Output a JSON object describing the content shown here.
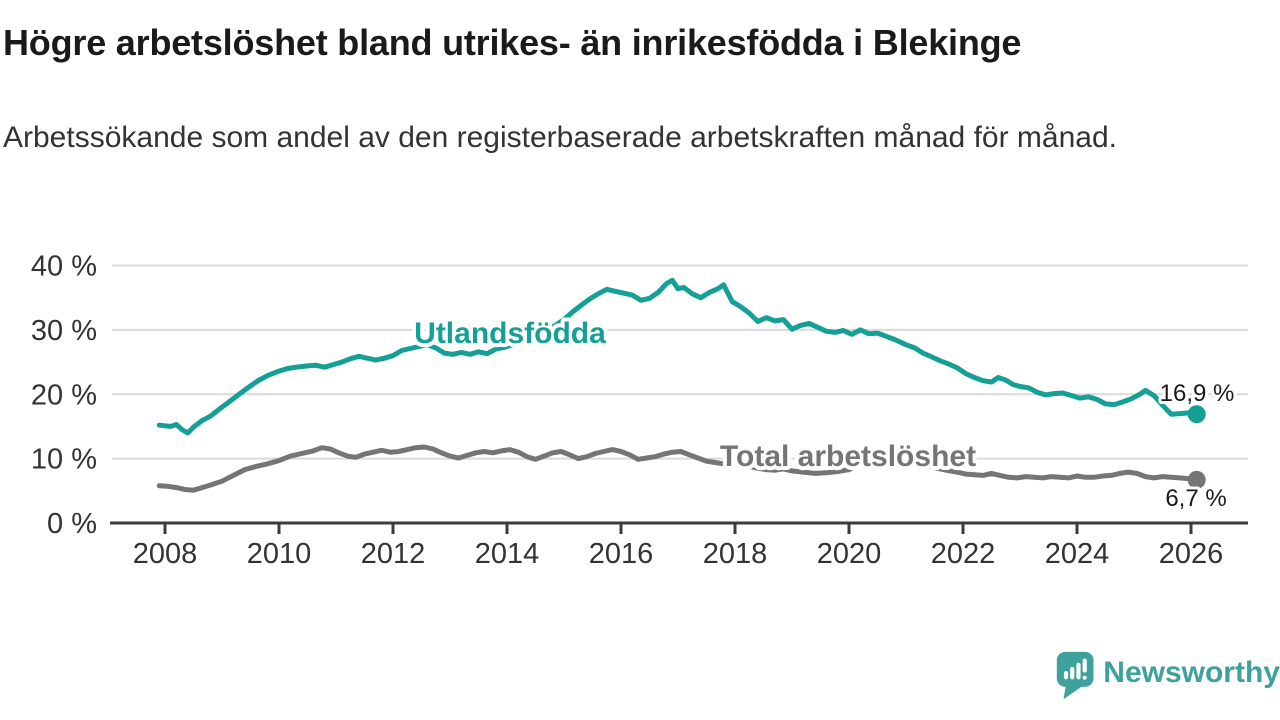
{
  "header": {
    "title": "Högre arbetslöshet bland utrikes- än inrikesfödda i Blekinge",
    "subtitle": "Arbetssökande som andel av den registerbaserade arbetskraften månad för månad."
  },
  "footer": {
    "brand": "Newsworthy",
    "logo_icon": "newsworthy-speech-bubble-bar-chart-icon"
  },
  "colors": {
    "utlandsfodda": "#14a096",
    "total": "#757575",
    "grid": "#dadada",
    "axis": "#3b3b3b",
    "axis_text": "#333333",
    "value_text": "#1a1a1a",
    "brand": "#3fa19b",
    "background": "#ffffff"
  },
  "chart_data": {
    "type": "line",
    "title": "Högre arbetslöshet bland utrikes- än inrikesfödda i Blekinge",
    "subtitle": "Arbetssökande som andel av den registerbaserade arbetskraften månad för månad.",
    "xlabel": "",
    "ylabel": "",
    "grid": "horizontal-gridlines",
    "legend": "inline-series-labels",
    "x_axis": {
      "tick_labels": [
        "2008",
        "2010",
        "2012",
        "2014",
        "2016",
        "2018",
        "2020",
        "2022",
        "2024",
        "2026"
      ],
      "tick_values": [
        2008,
        2010,
        2012,
        2014,
        2016,
        2018,
        2020,
        2022,
        2024,
        2026
      ],
      "range": [
        2007.85,
        2027.0
      ]
    },
    "y_axis": {
      "tick_labels": [
        "0 %",
        "10 %",
        "20 %",
        "30 %",
        "40 %"
      ],
      "tick_values": [
        0,
        10,
        20,
        30,
        40
      ],
      "range": [
        0,
        40
      ],
      "unit": "%"
    },
    "series": [
      {
        "name": "Utlandsfödda",
        "color": "#14a096",
        "end_label": "16,9 %",
        "end_value": 16.9,
        "points": [
          [
            2007.9,
            15.2
          ],
          [
            2008.0,
            15.1
          ],
          [
            2008.1,
            15.0
          ],
          [
            2008.2,
            15.3
          ],
          [
            2008.3,
            14.5
          ],
          [
            2008.4,
            14.0
          ],
          [
            2008.5,
            14.9
          ],
          [
            2008.65,
            15.9
          ],
          [
            2008.8,
            16.6
          ],
          [
            2009.0,
            18.0
          ],
          [
            2009.15,
            19.0
          ],
          [
            2009.3,
            20.0
          ],
          [
            2009.5,
            21.3
          ],
          [
            2009.65,
            22.2
          ],
          [
            2009.8,
            22.9
          ],
          [
            2010.0,
            23.6
          ],
          [
            2010.15,
            24.0
          ],
          [
            2010.3,
            24.2
          ],
          [
            2010.5,
            24.4
          ],
          [
            2010.65,
            24.5
          ],
          [
            2010.8,
            24.2
          ],
          [
            2010.95,
            24.6
          ],
          [
            2011.1,
            25.0
          ],
          [
            2011.25,
            25.5
          ],
          [
            2011.4,
            25.9
          ],
          [
            2011.55,
            25.6
          ],
          [
            2011.7,
            25.3
          ],
          [
            2011.85,
            25.6
          ],
          [
            2012.0,
            26.0
          ],
          [
            2012.15,
            26.8
          ],
          [
            2012.3,
            27.1
          ],
          [
            2012.45,
            27.4
          ],
          [
            2012.6,
            27.7
          ],
          [
            2012.75,
            27.2
          ],
          [
            2012.9,
            26.4
          ],
          [
            2013.05,
            26.2
          ],
          [
            2013.2,
            26.5
          ],
          [
            2013.35,
            26.2
          ],
          [
            2013.5,
            26.6
          ],
          [
            2013.65,
            26.3
          ],
          [
            2013.8,
            27.0
          ],
          [
            2013.95,
            27.3
          ],
          [
            2014.1,
            27.7
          ],
          [
            2014.25,
            28.4
          ],
          [
            2014.4,
            29.0
          ],
          [
            2014.55,
            29.3
          ],
          [
            2014.7,
            29.9
          ],
          [
            2014.85,
            30.7
          ],
          [
            2015.0,
            31.6
          ],
          [
            2015.15,
            32.8
          ],
          [
            2015.3,
            33.8
          ],
          [
            2015.45,
            34.8
          ],
          [
            2015.6,
            35.6
          ],
          [
            2015.75,
            36.3
          ],
          [
            2015.9,
            36.0
          ],
          [
            2016.05,
            35.7
          ],
          [
            2016.2,
            35.4
          ],
          [
            2016.35,
            34.6
          ],
          [
            2016.5,
            34.9
          ],
          [
            2016.65,
            35.8
          ],
          [
            2016.8,
            37.2
          ],
          [
            2016.9,
            37.7
          ],
          [
            2017.0,
            36.4
          ],
          [
            2017.1,
            36.6
          ],
          [
            2017.25,
            35.6
          ],
          [
            2017.4,
            35.0
          ],
          [
            2017.55,
            35.8
          ],
          [
            2017.7,
            36.4
          ],
          [
            2017.8,
            37.0
          ],
          [
            2017.95,
            34.4
          ],
          [
            2018.1,
            33.6
          ],
          [
            2018.25,
            32.6
          ],
          [
            2018.4,
            31.3
          ],
          [
            2018.55,
            31.9
          ],
          [
            2018.7,
            31.4
          ],
          [
            2018.85,
            31.6
          ],
          [
            2019.0,
            30.1
          ],
          [
            2019.15,
            30.7
          ],
          [
            2019.3,
            31.0
          ],
          [
            2019.45,
            30.4
          ],
          [
            2019.6,
            29.8
          ],
          [
            2019.75,
            29.6
          ],
          [
            2019.9,
            29.9
          ],
          [
            2020.05,
            29.3
          ],
          [
            2020.2,
            30.0
          ],
          [
            2020.35,
            29.4
          ],
          [
            2020.5,
            29.5
          ],
          [
            2020.65,
            29.0
          ],
          [
            2020.8,
            28.5
          ],
          [
            2021.0,
            27.7
          ],
          [
            2021.15,
            27.2
          ],
          [
            2021.3,
            26.4
          ],
          [
            2021.45,
            25.8
          ],
          [
            2021.6,
            25.2
          ],
          [
            2021.75,
            24.7
          ],
          [
            2021.9,
            24.1
          ],
          [
            2022.05,
            23.2
          ],
          [
            2022.2,
            22.6
          ],
          [
            2022.35,
            22.1
          ],
          [
            2022.5,
            21.9
          ],
          [
            2022.62,
            22.6
          ],
          [
            2022.75,
            22.2
          ],
          [
            2022.88,
            21.5
          ],
          [
            2023.0,
            21.2
          ],
          [
            2023.15,
            21.0
          ],
          [
            2023.3,
            20.3
          ],
          [
            2023.45,
            19.9
          ],
          [
            2023.6,
            20.1
          ],
          [
            2023.75,
            20.2
          ],
          [
            2023.9,
            19.8
          ],
          [
            2024.05,
            19.4
          ],
          [
            2024.2,
            19.6
          ],
          [
            2024.35,
            19.2
          ],
          [
            2024.5,
            18.5
          ],
          [
            2024.65,
            18.4
          ],
          [
            2024.8,
            18.8
          ],
          [
            2024.95,
            19.3
          ],
          [
            2025.1,
            20.0
          ],
          [
            2025.2,
            20.6
          ],
          [
            2025.35,
            19.8
          ],
          [
            2025.5,
            18.3
          ],
          [
            2025.65,
            16.9
          ],
          [
            2025.8,
            17.0
          ],
          [
            2025.95,
            17.1
          ],
          [
            2026.1,
            16.9
          ]
        ]
      },
      {
        "name": "Total arbetslöshet",
        "color": "#757575",
        "end_label": "6,7 %",
        "end_value": 6.7,
        "points": [
          [
            2007.9,
            5.8
          ],
          [
            2008.05,
            5.7
          ],
          [
            2008.2,
            5.5
          ],
          [
            2008.35,
            5.2
          ],
          [
            2008.5,
            5.1
          ],
          [
            2008.65,
            5.5
          ],
          [
            2008.8,
            5.9
          ],
          [
            2009.0,
            6.5
          ],
          [
            2009.2,
            7.4
          ],
          [
            2009.4,
            8.3
          ],
          [
            2009.6,
            8.8
          ],
          [
            2009.8,
            9.2
          ],
          [
            2010.0,
            9.7
          ],
          [
            2010.2,
            10.4
          ],
          [
            2010.4,
            10.8
          ],
          [
            2010.6,
            11.2
          ],
          [
            2010.75,
            11.7
          ],
          [
            2010.9,
            11.5
          ],
          [
            2011.05,
            10.9
          ],
          [
            2011.2,
            10.4
          ],
          [
            2011.35,
            10.2
          ],
          [
            2011.5,
            10.7
          ],
          [
            2011.65,
            11.0
          ],
          [
            2011.8,
            11.3
          ],
          [
            2011.95,
            11.0
          ],
          [
            2012.1,
            11.1
          ],
          [
            2012.25,
            11.4
          ],
          [
            2012.4,
            11.7
          ],
          [
            2012.55,
            11.8
          ],
          [
            2012.7,
            11.5
          ],
          [
            2012.85,
            10.9
          ],
          [
            2013.0,
            10.4
          ],
          [
            2013.15,
            10.1
          ],
          [
            2013.3,
            10.5
          ],
          [
            2013.45,
            10.9
          ],
          [
            2013.6,
            11.1
          ],
          [
            2013.75,
            10.9
          ],
          [
            2013.9,
            11.2
          ],
          [
            2014.05,
            11.4
          ],
          [
            2014.2,
            11.0
          ],
          [
            2014.35,
            10.3
          ],
          [
            2014.5,
            9.9
          ],
          [
            2014.65,
            10.4
          ],
          [
            2014.8,
            10.9
          ],
          [
            2014.95,
            11.1
          ],
          [
            2015.1,
            10.6
          ],
          [
            2015.25,
            10.0
          ],
          [
            2015.4,
            10.3
          ],
          [
            2015.55,
            10.8
          ],
          [
            2015.7,
            11.1
          ],
          [
            2015.85,
            11.4
          ],
          [
            2016.0,
            11.1
          ],
          [
            2016.15,
            10.6
          ],
          [
            2016.3,
            9.9
          ],
          [
            2016.45,
            10.1
          ],
          [
            2016.6,
            10.3
          ],
          [
            2016.75,
            10.7
          ],
          [
            2016.9,
            11.0
          ],
          [
            2017.05,
            11.1
          ],
          [
            2017.2,
            10.6
          ],
          [
            2017.35,
            10.1
          ],
          [
            2017.5,
            9.6
          ],
          [
            2017.65,
            9.4
          ],
          [
            2017.8,
            9.2
          ],
          [
            2017.95,
            9.4
          ],
          [
            2018.1,
            9.1
          ],
          [
            2018.25,
            8.8
          ],
          [
            2018.4,
            8.5
          ],
          [
            2018.55,
            8.3
          ],
          [
            2018.7,
            8.2
          ],
          [
            2018.85,
            8.4
          ],
          [
            2019.0,
            8.1
          ],
          [
            2019.2,
            7.9
          ],
          [
            2019.4,
            7.7
          ],
          [
            2019.6,
            7.8
          ],
          [
            2019.8,
            8.0
          ],
          [
            2020.0,
            8.3
          ],
          [
            2020.2,
            9.2
          ],
          [
            2020.4,
            10.2
          ],
          [
            2020.55,
            10.6
          ],
          [
            2020.7,
            10.4
          ],
          [
            2020.9,
            10.0
          ],
          [
            2021.1,
            9.5
          ],
          [
            2021.3,
            9.0
          ],
          [
            2021.5,
            8.6
          ],
          [
            2021.7,
            8.2
          ],
          [
            2021.9,
            7.9
          ],
          [
            2022.05,
            7.6
          ],
          [
            2022.2,
            7.5
          ],
          [
            2022.35,
            7.4
          ],
          [
            2022.5,
            7.7
          ],
          [
            2022.65,
            7.4
          ],
          [
            2022.8,
            7.1
          ],
          [
            2022.95,
            7.0
          ],
          [
            2023.1,
            7.2
          ],
          [
            2023.25,
            7.1
          ],
          [
            2023.4,
            7.0
          ],
          [
            2023.55,
            7.2
          ],
          [
            2023.7,
            7.1
          ],
          [
            2023.85,
            7.0
          ],
          [
            2024.0,
            7.3
          ],
          [
            2024.15,
            7.1
          ],
          [
            2024.3,
            7.1
          ],
          [
            2024.45,
            7.3
          ],
          [
            2024.6,
            7.4
          ],
          [
            2024.75,
            7.7
          ],
          [
            2024.9,
            7.9
          ],
          [
            2025.05,
            7.7
          ],
          [
            2025.2,
            7.2
          ],
          [
            2025.35,
            7.0
          ],
          [
            2025.5,
            7.2
          ],
          [
            2025.65,
            7.1
          ],
          [
            2025.8,
            7.0
          ],
          [
            2025.95,
            6.9
          ],
          [
            2026.1,
            6.7
          ]
        ]
      }
    ]
  }
}
